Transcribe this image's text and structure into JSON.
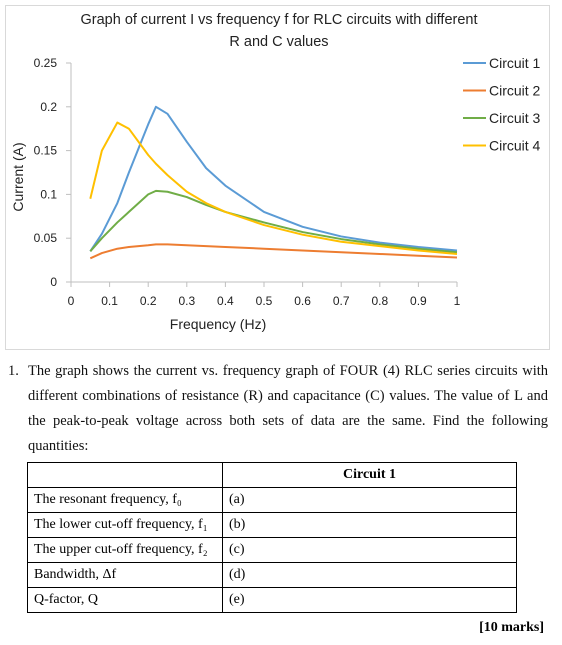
{
  "chart_data": {
    "type": "line",
    "title_lines": [
      "Graph of current I vs frequency f for RLC circuits with different",
      "R and C values"
    ],
    "xlabel": "Frequency (Hz)",
    "ylabel": "Current (A)",
    "x": [
      0.05,
      0.08,
      0.12,
      0.15,
      0.2,
      0.22,
      0.25,
      0.3,
      0.35,
      0.4,
      0.5,
      0.6,
      0.7,
      0.8,
      0.9,
      1.0
    ],
    "series": [
      {
        "name": "Circuit 1",
        "color": "#5b9bd5",
        "values": [
          0.035,
          0.055,
          0.09,
          0.125,
          0.18,
          0.2,
          0.192,
          0.16,
          0.13,
          0.11,
          0.08,
          0.063,
          0.052,
          0.045,
          0.04,
          0.036
        ]
      },
      {
        "name": "Circuit 2",
        "color": "#ed7d31",
        "values": [
          0.027,
          0.033,
          0.038,
          0.04,
          0.042,
          0.043,
          0.043,
          0.042,
          0.041,
          0.04,
          0.038,
          0.036,
          0.034,
          0.032,
          0.03,
          0.028
        ]
      },
      {
        "name": "Circuit 3",
        "color": "#70ad47",
        "values": [
          0.035,
          0.05,
          0.068,
          0.08,
          0.1,
          0.104,
          0.103,
          0.097,
          0.088,
          0.08,
          0.068,
          0.057,
          0.049,
          0.043,
          0.038,
          0.034
        ]
      },
      {
        "name": "Circuit 4",
        "color": "#ffc000",
        "values": [
          0.095,
          0.15,
          0.182,
          0.175,
          0.145,
          0.135,
          0.122,
          0.103,
          0.09,
          0.08,
          0.065,
          0.054,
          0.046,
          0.041,
          0.036,
          0.032
        ]
      }
    ],
    "xlim": [
      0,
      1
    ],
    "xticks": [
      0,
      0.1,
      0.2,
      0.3,
      0.4,
      0.5,
      0.6,
      0.7,
      0.8,
      0.9,
      1
    ],
    "ylim": [
      0,
      0.25
    ],
    "yticks": [
      0,
      0.05,
      0.1,
      0.15,
      0.2,
      0.25
    ],
    "grid": false,
    "legend": "right"
  },
  "question": {
    "number": "1.",
    "text": "The graph shows the current vs. frequency graph of FOUR (4) RLC series circuits with different combinations of resistance (R) and capacitance (C) values. The value of L and the peak-to-peak voltage across both sets of data are the same. Find the following quantities:"
  },
  "table": {
    "header": "Circuit 1",
    "rows": [
      [
        "The resonant frequency, f₀",
        "(a)"
      ],
      [
        "The lower cut-off frequency, f₁",
        "(b)"
      ],
      [
        "The upper cut-off frequency, f₂",
        "(c)"
      ],
      [
        "Bandwidth, Δf",
        "(d)"
      ],
      [
        "Q-factor, Q",
        "(e)"
      ]
    ]
  },
  "marks": "[10 marks]"
}
